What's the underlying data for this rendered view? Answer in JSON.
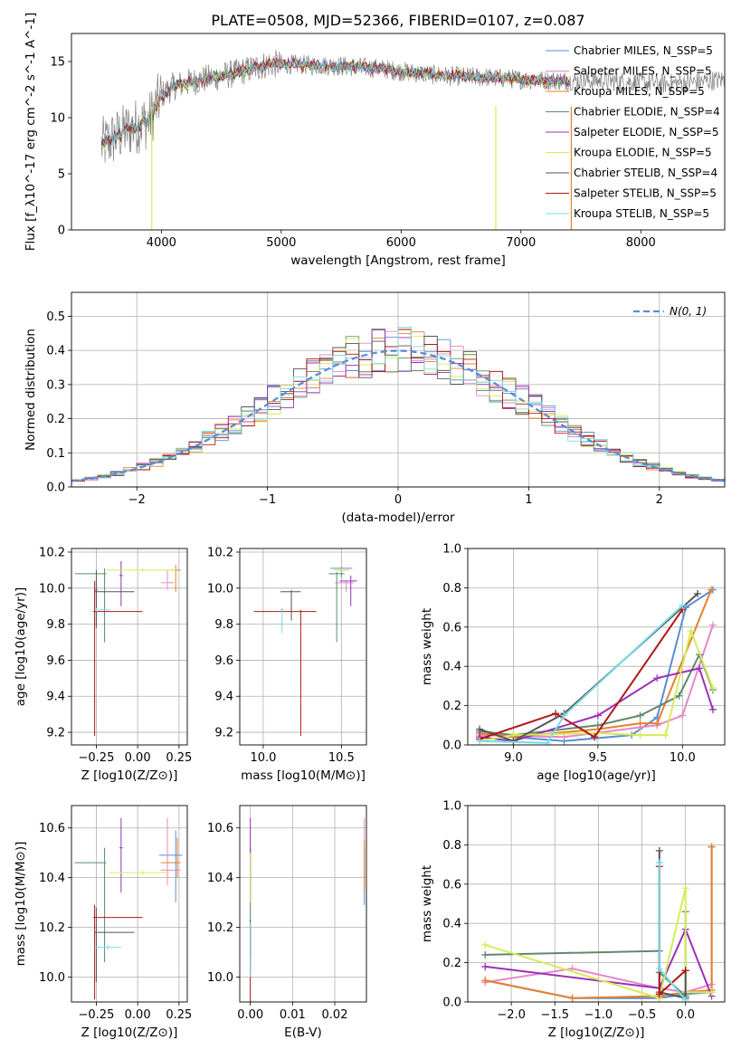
{
  "figure": {
    "title": "PLATE=0508, MJD=52366, FIBERID=0107, z=0.087"
  },
  "colors": {
    "Chabrier MILES": "#5b8dd6",
    "Salpeter MILES": "#e887c8",
    "Kroupa MILES": "#e6812e",
    "Chabrier ELODIE": "#5e8a6a",
    "Salpeter ELODIE": "#9b30b8",
    "Kroupa ELODIE": "#d6ec55",
    "Chabrier STELIB": "#555555",
    "Salpeter STELIB": "#b01818",
    "Kroupa STELIB": "#7adbe6",
    "data": "#808080",
    "gaussian": "#5b8dd6"
  },
  "chart_data": [
    {
      "id": "spectrum",
      "type": "line",
      "title": "PLATE=0508, MJD=52366, FIBERID=0107, z=0.087",
      "xlabel": "wavelength [Angstrom, rest frame]",
      "ylabel": "Flux [f_λ10^-17 erg cm^-2 s^-1 A^-1]",
      "xlim": [
        3250,
        8700
      ],
      "ylim": [
        0,
        17.5
      ],
      "xticks": [
        4000,
        5000,
        6000,
        7000,
        8000
      ],
      "yticks": [
        0,
        5,
        10,
        15
      ],
      "legend_position": "upper right",
      "legend": [
        "Chabrier MILES, N_SSP=5",
        "Salpeter MILES, N_SSP=5",
        "Kroupa MILES, N_SSP=5",
        "Chabrier ELODIE, N_SSP=4",
        "Salpeter ELODIE, N_SSP=5",
        "Kroupa ELODIE, N_SSP=5",
        "Chabrier STELIB, N_SSP=4",
        "Salpeter STELIB, N_SSP=5",
        "Kroupa STELIB, N_SSP=5"
      ],
      "data_range": [
        3500,
        8700
      ],
      "continuum": {
        "x": [
          3500,
          3700,
          3900,
          4000,
          4100,
          4300,
          4600,
          4900,
          5200,
          5500,
          5800,
          6100,
          6400,
          6700,
          7000,
          7300,
          7600,
          7900,
          8200,
          8500,
          8700
        ],
        "y": [
          7.5,
          8.8,
          9.8,
          12.0,
          12.8,
          13.3,
          13.9,
          14.8,
          14.7,
          14.6,
          14.4,
          14.0,
          13.7,
          13.6,
          13.4,
          13.3,
          13.3,
          13.2,
          13.0,
          13.2,
          13.4
        ]
      },
      "grid": false
    },
    {
      "id": "residuals",
      "type": "line",
      "xlabel": "(data-model)/error",
      "ylabel": "Normed distribution",
      "xlim": [
        -2.5,
        2.5
      ],
      "ylim": [
        0,
        0.57
      ],
      "xticks": [
        -2,
        -1,
        0,
        1,
        2
      ],
      "yticks": [
        0.0,
        0.1,
        0.2,
        0.3,
        0.4,
        0.5
      ],
      "legend": [
        "N(0, 1)"
      ],
      "legend_position": "upper right",
      "grid": true,
      "bin_width": 0.1,
      "bins_start": -2.5,
      "series_names": [
        "Chabrier MILES",
        "Salpeter MILES",
        "Kroupa MILES",
        "Chabrier ELODIE",
        "Salpeter ELODIE",
        "Kroupa ELODIE",
        "Chabrier STELIB",
        "Salpeter STELIB",
        "Kroupa STELIB"
      ],
      "gaussian": {
        "mean": 0,
        "sigma": 1
      }
    },
    {
      "id": "age_vs_Z",
      "type": "scatter",
      "xlabel": "Z [log10(Z/Z⊙)]",
      "ylabel": "age  [log10(age/yr)]",
      "xlim": [
        -0.4,
        0.3
      ],
      "ylim": [
        9.13,
        10.22
      ],
      "xticks": [
        -0.25,
        0.0,
        0.25
      ],
      "xticklabels": [
        "−0.25",
        "0.00",
        "0.25"
      ],
      "yticks": [
        9.2,
        9.4,
        9.6,
        9.8,
        10.0,
        10.2
      ],
      "grid": true,
      "points": [
        {
          "series": "Chabrier MILES",
          "x": -0.25,
          "xlo": 0.01,
          "xhi": 0.01,
          "y": 9.99,
          "ylo": 0.2,
          "yhi": 0.03
        },
        {
          "series": "Salpeter MILES",
          "x": 0.18,
          "xlo": 0.04,
          "xhi": 0.04,
          "y": 10.03,
          "ylo": 0.04,
          "yhi": 0.07
        },
        {
          "series": "Kroupa MILES",
          "x": 0.23,
          "xlo": 0.03,
          "xhi": 0.03,
          "y": 10.1,
          "ylo": 0.12,
          "yhi": 0.03
        },
        {
          "series": "Chabrier ELODIE",
          "x": -0.2,
          "xlo": 0.18,
          "xhi": 0.01,
          "y": 10.08,
          "ylo": 0.38,
          "yhi": 0.03
        },
        {
          "series": "Salpeter ELODIE",
          "x": -0.1,
          "xlo": 0.01,
          "xhi": 0.01,
          "y": 10.07,
          "ylo": 0.17,
          "yhi": 0.08
        },
        {
          "series": "Kroupa ELODIE",
          "x": 0.03,
          "xlo": 0.22,
          "xhi": 0.2,
          "y": 10.1,
          "ylo": 0.01,
          "yhi": 0.01
        },
        {
          "series": "Chabrier STELIB",
          "x": -0.25,
          "xlo": 0.01,
          "xhi": 0.23,
          "y": 9.98,
          "ylo": 0.2,
          "yhi": 0.12
        },
        {
          "series": "Salpeter STELIB",
          "x": -0.26,
          "xlo": 0.01,
          "xhi": 0.29,
          "y": 9.87,
          "ylo": 0.69,
          "yhi": 0.17
        },
        {
          "series": "Kroupa STELIB",
          "x": -0.25,
          "xlo": 0.01,
          "xhi": 0.08,
          "y": 9.88,
          "ylo": 0.01,
          "yhi": 0.01
        }
      ]
    },
    {
      "id": "age_vs_mass",
      "type": "scatter",
      "xlabel": "mass [log10(M/M⊙)]",
      "ylabel": "",
      "xlim": [
        9.85,
        10.66
      ],
      "ylim": [
        9.13,
        10.22
      ],
      "xticks": [
        10.0,
        10.5
      ],
      "xticklabels": [
        "10.0",
        "10.5"
      ],
      "yticks": [
        9.2,
        9.4,
        9.6,
        9.8,
        10.0,
        10.2
      ],
      "grid": true,
      "points": [
        {
          "series": "Chabrier MILES",
          "x": 10.5,
          "xlo": 0.07,
          "xhi": 0.07,
          "y": 10.11,
          "ylo": 0.05,
          "yhi": 0.01
        },
        {
          "series": "Salpeter MILES",
          "x": 10.53,
          "xlo": 0.07,
          "xhi": 0.05,
          "y": 10.03,
          "ylo": 0.05,
          "yhi": 0.01
        },
        {
          "series": "Kroupa MILES",
          "x": 10.5,
          "xlo": 0.04,
          "xhi": 0.05,
          "y": 10.1,
          "ylo": 0.01,
          "yhi": 0.01
        },
        {
          "series": "Chabrier ELODIE",
          "x": 10.47,
          "xlo": 0.05,
          "xhi": 0.05,
          "y": 10.08,
          "ylo": 0.38,
          "yhi": 0.01
        },
        {
          "series": "Salpeter ELODIE",
          "x": 10.56,
          "xlo": 0.07,
          "xhi": 0.04,
          "y": 10.04,
          "ylo": 0.14,
          "yhi": 0.03
        },
        {
          "series": "Kroupa ELODIE",
          "x": 10.5,
          "xlo": 0.05,
          "xhi": 0.05,
          "y": 10.1,
          "ylo": 0.01,
          "yhi": 0.01
        },
        {
          "series": "Chabrier STELIB",
          "x": 10.18,
          "xlo": 0.07,
          "xhi": 0.06,
          "y": 9.98,
          "ylo": 0.16,
          "yhi": 0.01
        },
        {
          "series": "Salpeter STELIB",
          "x": 10.24,
          "xlo": 0.3,
          "xhi": 0.1,
          "y": 9.87,
          "ylo": 0.69,
          "yhi": 0.01
        },
        {
          "series": "Kroupa STELIB",
          "x": 10.12,
          "xlo": 0.01,
          "xhi": 0.01,
          "y": 9.88,
          "ylo": 0.13,
          "yhi": 0.01
        }
      ]
    },
    {
      "id": "weight_vs_age",
      "type": "line",
      "xlabel": "age  [log10(age/yr)]",
      "ylabel": "mass weight",
      "xlim": [
        8.73,
        10.25
      ],
      "ylim": [
        0,
        1.0
      ],
      "xticks": [
        9.0,
        9.5,
        10.0
      ],
      "xticklabels": [
        "9.0",
        "9.5",
        "10.0"
      ],
      "yticks": [
        0.0,
        0.2,
        0.4,
        0.6,
        0.8,
        1.0
      ],
      "grid": true,
      "series": [
        {
          "name": "Chabrier MILES",
          "x": [
            8.8,
            9.0,
            9.3,
            9.7,
            9.85,
            10.02,
            10.18
          ],
          "y": [
            0.06,
            0.04,
            0.02,
            0.05,
            0.14,
            0.7,
            0.79
          ]
        },
        {
          "name": "Salpeter MILES",
          "x": [
            8.8,
            9.3,
            9.75,
            9.85,
            10.0,
            10.18
          ],
          "y": [
            0.05,
            0.04,
            0.09,
            0.1,
            0.15,
            0.61
          ]
        },
        {
          "name": "Kroupa MILES",
          "x": [
            8.8,
            9.0,
            9.5,
            9.75,
            9.85,
            10.17
          ],
          "y": [
            0.06,
            0.04,
            0.08,
            0.11,
            0.11,
            0.79
          ]
        },
        {
          "name": "Chabrier ELODIE",
          "x": [
            8.8,
            9.0,
            9.5,
            9.75,
            9.98,
            10.1,
            10.18
          ],
          "y": [
            0.07,
            0.05,
            0.1,
            0.15,
            0.25,
            0.46,
            0.28
          ]
        },
        {
          "name": "Salpeter ELODIE",
          "x": [
            8.8,
            9.0,
            9.5,
            9.85,
            10.1,
            10.18
          ],
          "y": [
            0.04,
            0.02,
            0.15,
            0.34,
            0.39,
            0.18
          ]
        },
        {
          "name": "Kroupa ELODIE",
          "x": [
            8.8,
            9.0,
            9.5,
            9.75,
            9.9,
            10.05,
            10.18
          ],
          "y": [
            0.02,
            0.05,
            0.06,
            0.05,
            0.05,
            0.58,
            0.29
          ]
        },
        {
          "name": "Chabrier STELIB",
          "x": [
            8.8,
            9.0,
            9.3,
            10.09
          ],
          "y": [
            0.08,
            0.02,
            0.16,
            0.77
          ]
        },
        {
          "name": "Salpeter STELIB",
          "x": [
            8.8,
            9.25,
            9.48,
            10.0
          ],
          "y": [
            0.03,
            0.16,
            0.04,
            0.69
          ]
        },
        {
          "name": "Kroupa STELIB",
          "x": [
            8.8,
            9.2,
            9.3,
            10.0
          ],
          "y": [
            0.02,
            0.01,
            0.15,
            0.71
          ]
        }
      ]
    },
    {
      "id": "mass_vs_Z",
      "type": "scatter",
      "xlabel": "Z [log10(Z/Z⊙)]",
      "ylabel": "mass [log10(M/M⊙)]",
      "xlim": [
        -0.4,
        0.3
      ],
      "ylim": [
        9.9,
        10.69
      ],
      "xticks": [
        -0.25,
        0.0,
        0.25
      ],
      "xticklabels": [
        "−0.25",
        "0.00",
        "0.25"
      ],
      "yticks": [
        10.0,
        10.2,
        10.4,
        10.6
      ],
      "grid": true,
      "points": [
        {
          "series": "Chabrier MILES",
          "x": 0.23,
          "xlo": 0.1,
          "xhi": 0.04,
          "y": 10.49,
          "ylo": 0.19,
          "yhi": 0.1
        },
        {
          "series": "Salpeter MILES",
          "x": 0.18,
          "xlo": 0.04,
          "xhi": 0.08,
          "y": 10.43,
          "ylo": 0.06,
          "yhi": 0.21
        },
        {
          "series": "Kroupa MILES",
          "x": 0.24,
          "xlo": 0.1,
          "xhi": 0.02,
          "y": 10.46,
          "ylo": 0.06,
          "yhi": 0.1
        },
        {
          "series": "Chabrier ELODIE",
          "x": -0.2,
          "xlo": 0.18,
          "xhi": 0.01,
          "y": 10.46,
          "ylo": 0.4,
          "yhi": 0.06
        },
        {
          "series": "Salpeter ELODIE",
          "x": -0.1,
          "xlo": 0.01,
          "xhi": 0.01,
          "y": 10.52,
          "ylo": 0.18,
          "yhi": 0.12
        },
        {
          "series": "Kroupa ELODIE",
          "x": 0.03,
          "xlo": 0.2,
          "xhi": 0.16,
          "y": 10.42,
          "ylo": 0.01,
          "yhi": 0.01
        },
        {
          "series": "Chabrier STELIB",
          "x": -0.25,
          "xlo": 0.01,
          "xhi": 0.23,
          "y": 10.18,
          "ylo": 0.2,
          "yhi": 0.1
        },
        {
          "series": "Salpeter STELIB",
          "x": -0.26,
          "xlo": 0.01,
          "xhi": 0.29,
          "y": 10.24,
          "ylo": 0.33,
          "yhi": 0.05
        },
        {
          "series": "Kroupa STELIB",
          "x": -0.18,
          "xlo": 0.08,
          "xhi": 0.08,
          "y": 10.12,
          "ylo": 0.01,
          "yhi": 0.01
        }
      ]
    },
    {
      "id": "mass_vs_ebv",
      "type": "scatter",
      "xlabel": "E(B-V)",
      "ylabel": "",
      "xlim": [
        -0.0025,
        0.0275
      ],
      "ylim": [
        9.9,
        10.69
      ],
      "xticks": [
        0.0,
        0.01,
        0.02
      ],
      "xticklabels": [
        "0.00",
        "0.01",
        "0.02"
      ],
      "yticks": [
        10.0,
        10.2,
        10.4,
        10.6
      ],
      "grid": true,
      "points": [
        {
          "series": "Chabrier MILES",
          "x": 0.027,
          "xlo": 0,
          "xhi": 0,
          "y": 10.42,
          "ylo": 0.13,
          "yhi": 0.1
        },
        {
          "series": "Salpeter MILES",
          "x": 0.027,
          "xlo": 0,
          "xhi": 0,
          "y": 10.45,
          "ylo": 0.1,
          "yhi": 0.19
        },
        {
          "series": "Kroupa MILES",
          "x": 0.027,
          "xlo": 0,
          "xhi": 0,
          "y": 10.45,
          "ylo": 0.1,
          "yhi": 0.1
        },
        {
          "series": "Chabrier ELODIE",
          "x": 0.0,
          "xlo": 0,
          "xhi": 0,
          "y": 10.3,
          "ylo": 0.28,
          "yhi": 0.22
        },
        {
          "series": "Salpeter ELODIE",
          "x": 0.0,
          "xlo": 0,
          "xhi": 0,
          "y": 10.4,
          "ylo": 0.1,
          "yhi": 0.24
        },
        {
          "series": "Kroupa ELODIE",
          "x": 0.0,
          "xlo": 0,
          "xhi": 0,
          "y": 10.4,
          "ylo": 0.1,
          "yhi": 0.1
        },
        {
          "series": "Chabrier STELIB",
          "x": 0.0,
          "xlo": 0,
          "xhi": 0,
          "y": 10.18,
          "ylo": 0.1,
          "yhi": 0.05
        },
        {
          "series": "Salpeter STELIB",
          "x": 0.0,
          "xlo": 0,
          "xhi": 0,
          "y": 10.0,
          "ylo": 0.1,
          "yhi": 0.2
        },
        {
          "series": "Kroupa STELIB",
          "x": 0.0,
          "xlo": 0,
          "xhi": 0,
          "y": 10.1,
          "ylo": 0.1,
          "yhi": 0.12
        }
      ]
    },
    {
      "id": "weight_vs_Z",
      "type": "line",
      "xlabel": "Z [log10(Z/Z⊙)]",
      "ylabel": "mass weight",
      "xlim": [
        -2.5,
        0.45
      ],
      "ylim": [
        0,
        1.0
      ],
      "xticks": [
        -2.0,
        -1.5,
        -1.0,
        -0.5,
        0.0
      ],
      "xticklabels": [
        "−2.0",
        "−1.5",
        "−1.0",
        "−0.5",
        "0.0"
      ],
      "yticks": [
        0.0,
        0.2,
        0.4,
        0.6,
        0.8,
        1.0
      ],
      "grid": true,
      "series": [
        {
          "name": "Chabrier MILES",
          "x": [
            -2.3,
            -1.3,
            -0.3,
            0.0,
            0.3,
            0.3
          ],
          "y": [
            0.11,
            0.02,
            0.02,
            0.04,
            0.05,
            0.79
          ]
        },
        {
          "name": "Salpeter MILES",
          "x": [
            -2.3,
            -1.3,
            -0.3,
            0.0,
            0.3
          ],
          "y": [
            0.1,
            0.17,
            0.07,
            0.05,
            0.09
          ]
        },
        {
          "name": "Kroupa MILES",
          "x": [
            -2.3,
            -1.3,
            -0.3,
            0.0,
            0.3,
            0.3
          ],
          "y": [
            0.11,
            0.02,
            0.03,
            0.05,
            0.06,
            0.79
          ]
        },
        {
          "name": "Chabrier ELODIE",
          "x": [
            -2.3,
            -0.3,
            -0.3,
            0.0,
            0.0
          ],
          "y": [
            0.24,
            0.26,
            0.15,
            0.03,
            0.46
          ]
        },
        {
          "name": "Salpeter ELODIE",
          "x": [
            -2.3,
            -0.3,
            0.0,
            0.3
          ],
          "y": [
            0.18,
            0.07,
            0.37,
            0.03
          ]
        },
        {
          "name": "Kroupa ELODIE",
          "x": [
            -2.3,
            -0.3,
            0.0,
            0.0,
            0.3
          ],
          "y": [
            0.29,
            0.02,
            0.58,
            0.05,
            0.05
          ]
        },
        {
          "name": "Chabrier STELIB",
          "x": [
            -0.3,
            -0.3,
            0.0,
            0.0
          ],
          "y": [
            0.77,
            0.05,
            0.02,
            0.16
          ]
        },
        {
          "name": "Salpeter STELIB",
          "x": [
            -0.3,
            -0.3,
            0.0
          ],
          "y": [
            0.69,
            0.04,
            0.16
          ]
        },
        {
          "name": "Kroupa STELIB",
          "x": [
            -0.3,
            -0.3,
            0.0
          ],
          "y": [
            0.71,
            0.17,
            0.01
          ]
        }
      ]
    }
  ]
}
